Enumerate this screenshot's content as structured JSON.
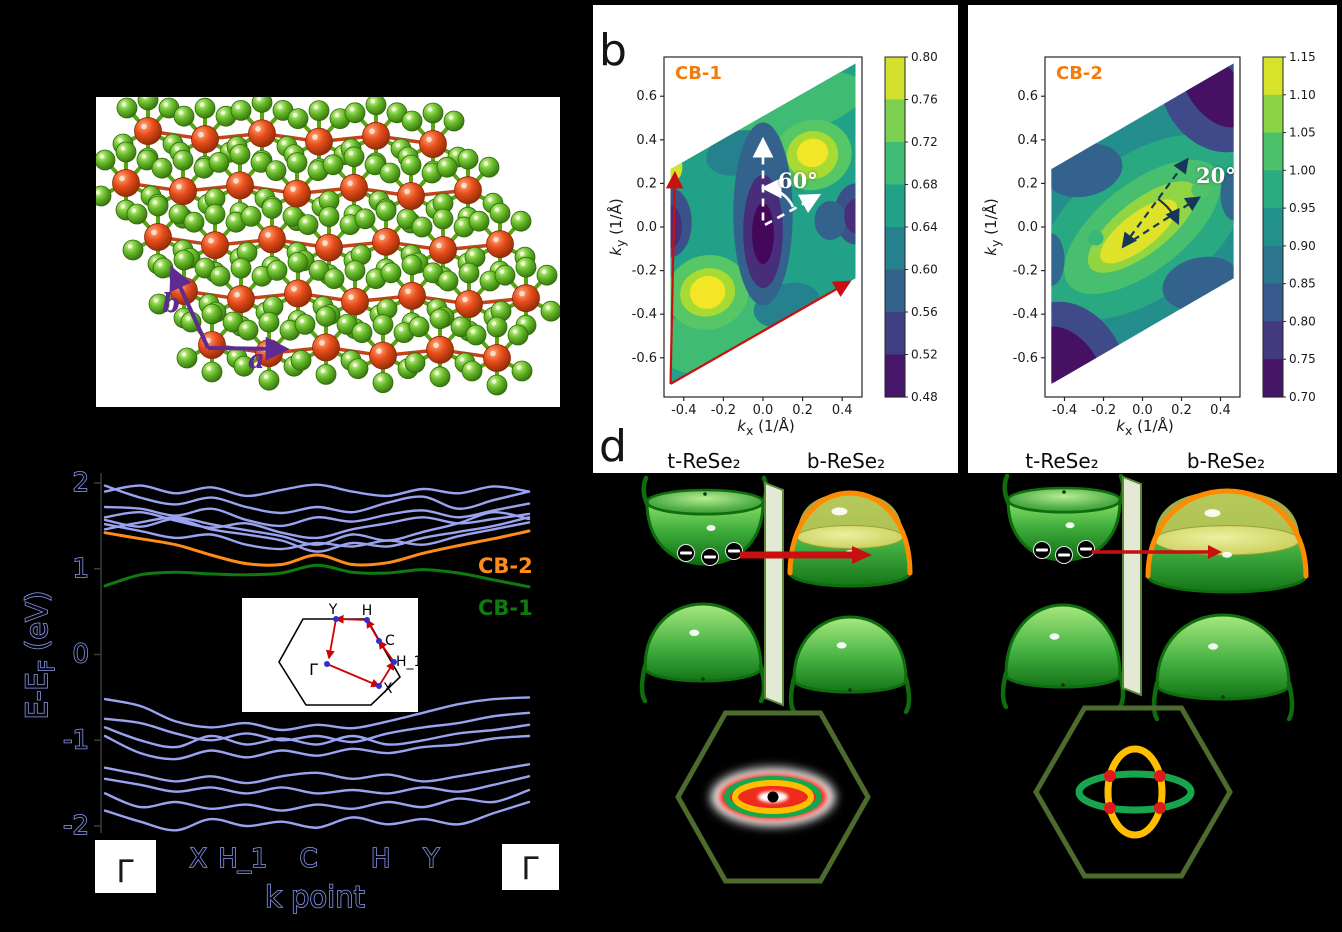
{
  "panels": {
    "a": {
      "vector_a_label": "a",
      "vector_b_label": "b"
    },
    "b": {
      "letter": "b"
    },
    "d": {
      "letter": "d",
      "diagram_1": {
        "label_left": "t-ReSe₂",
        "label_right": "b-ReSe₂"
      },
      "diagram_2": {
        "label_left": "t-ReSe₂",
        "label_right": "b-ReSe₂"
      }
    }
  },
  "colors": {
    "band_blue": "#9aa3f0",
    "cb1_green": "#0f7a0f",
    "cb2_orange": "#ff8c1a",
    "arrow_red": "#c81010",
    "lattice_purple": "#5f2b93",
    "annotation_navy": "#16365c",
    "hexagon_olive": "#4e6b2e",
    "ring_green": "#17a64e",
    "ring_yellow": "#ffbf00",
    "dot_red": "#e01a1a",
    "atom_re": "#e84e1b",
    "atom_se": "#6abf2e"
  },
  "chart_data": [
    {
      "type": "heatmap",
      "name": "effective-mass-map-cb1",
      "title": "CB-1",
      "xlabel": "k_x (1/Å)",
      "ylabel": "k_y (1/Å)",
      "xlim": [
        -0.5,
        0.5
      ],
      "ylim": [
        -0.78,
        0.78
      ],
      "xticks": [
        -0.4,
        -0.2,
        0.0,
        0.2,
        0.4
      ],
      "yticks": [
        0.6,
        0.4,
        0.2,
        0.0,
        -0.2,
        -0.4,
        -0.6
      ],
      "vmin": 0.48,
      "vmax": 0.8,
      "colorbar_ticks": [
        0.8,
        0.76,
        0.72,
        0.68,
        0.64,
        0.6,
        0.56,
        0.52,
        0.48
      ],
      "base_value": 0.66,
      "annotation": "60°",
      "region_polygon": [
        [
          -0.467,
          -0.72
        ],
        [
          0.467,
          -0.2355
        ],
        [
          0.467,
          0.75
        ],
        [
          -0.467,
          0.2655
        ]
      ],
      "maxima": [
        [
          0.25,
          0.33
        ],
        [
          -0.28,
          -0.3
        ]
      ],
      "minima": [
        [
          0.0,
          -0.02
        ]
      ],
      "features": [
        [
          0.03,
          0.54,
          0.5,
          0.15,
          -13,
          0.7
        ],
        [
          -0.2,
          -0.5,
          0.34,
          0.17,
          -13,
          0.7
        ],
        [
          0.25,
          0.33,
          0.2,
          0.16,
          -15,
          0.72
        ],
        [
          -0.28,
          -0.3,
          0.21,
          0.17,
          -15,
          0.72
        ],
        [
          0.25,
          0.33,
          0.13,
          0.11,
          -15,
          0.76
        ],
        [
          -0.28,
          -0.3,
          0.14,
          0.11,
          -15,
          0.76
        ],
        [
          0.25,
          0.34,
          0.08,
          0.065,
          -15,
          0.795
        ],
        [
          -0.28,
          -0.3,
          0.09,
          0.075,
          -15,
          0.795
        ],
        [
          -0.462,
          0.275,
          0.055,
          0.07,
          0,
          0.78
        ],
        [
          -0.12,
          0.34,
          0.17,
          0.1,
          -15,
          0.62
        ],
        [
          0.12,
          -0.36,
          0.17,
          0.1,
          -15,
          0.62
        ],
        [
          0,
          0.06,
          0.15,
          0.42,
          0,
          0.58
        ],
        [
          -0.47,
          0.02,
          0.11,
          0.16,
          0,
          0.56
        ],
        [
          0.47,
          0.06,
          0.11,
          0.14,
          0,
          0.56
        ],
        [
          0.34,
          0.03,
          0.08,
          0.09,
          0,
          0.58
        ],
        [
          0,
          -0.02,
          0.1,
          0.26,
          0,
          0.52
        ],
        [
          0,
          -0.03,
          0.055,
          0.14,
          0,
          0.485
        ],
        [
          0.47,
          0.05,
          0.06,
          0.08,
          0,
          0.52
        ],
        [
          -0.47,
          0,
          0.06,
          0.1,
          0,
          0.52
        ]
      ]
    },
    {
      "type": "heatmap",
      "name": "effective-mass-map-cb2",
      "title": "CB-2",
      "xlabel": "k_x (1/Å)",
      "ylabel": "k_y (1/Å)",
      "xlim": [
        -0.5,
        0.5
      ],
      "ylim": [
        -0.78,
        0.78
      ],
      "xticks": [
        -0.4,
        -0.2,
        0.0,
        0.2,
        0.4
      ],
      "yticks": [
        0.6,
        0.4,
        0.2,
        0.0,
        -0.2,
        -0.4,
        -0.6
      ],
      "vmin": 0.7,
      "vmax": 1.15,
      "colorbar_ticks": [
        1.15,
        1.1,
        1.05,
        1.0,
        0.95,
        0.9,
        0.85,
        0.8,
        0.75,
        0.7
      ],
      "base_value": 0.92,
      "annotation": "20°",
      "region_polygon": [
        [
          -0.467,
          -0.72
        ],
        [
          0.467,
          -0.2355
        ],
        [
          0.467,
          0.75
        ],
        [
          -0.467,
          0.2655
        ]
      ],
      "maxima": [
        [
          0.0,
          0.0
        ]
      ],
      "minima": [
        [
          0.36,
          0.62
        ],
        [
          -0.36,
          -0.62
        ]
      ],
      "features": [
        [
          0,
          0,
          0.62,
          0.32,
          -38,
          0.97
        ],
        [
          0,
          0,
          0.48,
          0.2,
          -38,
          1.02
        ],
        [
          0,
          0,
          0.34,
          0.12,
          -38,
          1.08
        ],
        [
          -0.02,
          -0.02,
          0.24,
          0.08,
          -38,
          1.13
        ],
        [
          0.3,
          0.17,
          0.05,
          0.04,
          0,
          1.03
        ],
        [
          -0.24,
          -0.05,
          0.04,
          0.035,
          0,
          1.0
        ],
        [
          -0.3,
          0.26,
          0.2,
          0.12,
          -13,
          0.84
        ],
        [
          0.3,
          -0.26,
          0.2,
          0.12,
          -13,
          0.84
        ],
        [
          0.47,
          0.15,
          0.07,
          0.12,
          0,
          0.85
        ],
        [
          -0.47,
          -0.15,
          0.07,
          0.12,
          0,
          0.85
        ],
        [
          0.36,
          0.6,
          0.24,
          0.28,
          -38,
          0.8
        ],
        [
          -0.36,
          -0.6,
          0.24,
          0.28,
          -38,
          0.8
        ],
        [
          0.37,
          0.63,
          0.13,
          0.2,
          -38,
          0.72
        ],
        [
          -0.37,
          -0.63,
          0.13,
          0.2,
          -38,
          0.72
        ]
      ]
    },
    {
      "type": "line",
      "name": "band-structure",
      "ylabel": "E-E_F (eV)",
      "xlabel": "k point",
      "ylim": [
        -2,
        2
      ],
      "yticks": [
        2,
        1,
        0,
        -1,
        -2
      ],
      "kpoint_labels": [
        "Γ",
        "X",
        "H_1",
        "C",
        "H",
        "Y",
        "Γ"
      ],
      "kpoint_frac": [
        0,
        0.22,
        0.325,
        0.48,
        0.65,
        0.77,
        1
      ],
      "cb1_label": "CB-1",
      "cb2_label": "CB-2",
      "cb2": [
        1.42,
        1.35,
        1.28,
        1.16,
        1.06,
        1.05,
        1.16,
        1.05,
        1.07,
        1.18,
        1.27,
        1.35,
        1.44
      ],
      "cb1": [
        0.8,
        0.93,
        0.96,
        0.94,
        0.93,
        0.95,
        1.04,
        0.96,
        0.95,
        0.99,
        0.95,
        0.87,
        0.79
      ],
      "conduction_bands": [
        [
          1.9,
          1.97,
          1.88,
          1.95,
          1.85,
          1.92,
          1.98,
          1.9,
          1.85,
          1.93,
          1.88,
          1.96,
          1.9
        ],
        [
          1.97,
          1.83,
          1.75,
          1.83,
          1.72,
          1.65,
          1.72,
          1.66,
          1.77,
          1.84,
          1.7,
          1.8,
          1.9
        ],
        [
          1.72,
          1.7,
          1.62,
          1.7,
          1.57,
          1.5,
          1.6,
          1.55,
          1.63,
          1.68,
          1.6,
          1.68,
          1.76
        ],
        [
          1.6,
          1.66,
          1.56,
          1.48,
          1.53,
          1.42,
          1.36,
          1.46,
          1.53,
          1.6,
          1.53,
          1.58,
          1.64
        ],
        [
          1.46,
          1.54,
          1.6,
          1.52,
          1.45,
          1.38,
          1.28,
          1.4,
          1.33,
          1.43,
          1.53,
          1.66,
          1.58
        ],
        [
          1.52,
          1.44,
          1.36,
          1.4,
          1.28,
          1.23,
          1.3,
          1.26,
          1.33,
          1.28,
          1.38,
          1.46,
          1.54
        ],
        [
          1.57,
          1.49,
          1.58,
          1.46,
          1.4,
          1.33,
          1.2,
          1.3,
          1.26,
          1.36,
          1.43,
          1.5,
          1.6
        ]
      ],
      "valence_bands": [
        [
          -0.52,
          -0.6,
          -0.78,
          -0.85,
          -0.8,
          -0.88,
          -0.82,
          -0.86,
          -0.78,
          -0.68,
          -0.58,
          -0.52,
          -0.5
        ],
        [
          -0.75,
          -0.8,
          -0.92,
          -1.0,
          -0.92,
          -1.0,
          -0.95,
          -1.02,
          -0.92,
          -0.85,
          -0.8,
          -0.72,
          -0.68
        ],
        [
          -0.85,
          -1.0,
          -1.08,
          -0.95,
          -1.05,
          -0.98,
          -1.05,
          -0.95,
          -1.05,
          -1.0,
          -0.92,
          -0.88,
          -0.82
        ],
        [
          -0.95,
          -1.15,
          -1.22,
          -1.12,
          -1.2,
          -1.12,
          -1.18,
          -1.1,
          -1.15,
          -1.08,
          -1.05,
          -0.98,
          -0.95
        ],
        [
          -1.32,
          -1.4,
          -1.48,
          -1.42,
          -1.5,
          -1.42,
          -1.38,
          -1.45,
          -1.4,
          -1.48,
          -1.42,
          -1.35,
          -1.28
        ],
        [
          -1.45,
          -1.52,
          -1.6,
          -1.55,
          -1.62,
          -1.55,
          -1.62,
          -1.58,
          -1.62,
          -1.55,
          -1.6,
          -1.52,
          -1.42
        ],
        [
          -1.62,
          -1.78,
          -1.72,
          -1.8,
          -1.75,
          -1.82,
          -1.75,
          -1.8,
          -1.72,
          -1.78,
          -1.68,
          -1.72,
          -1.58
        ],
        [
          -1.82,
          -1.95,
          -2.05,
          -1.92,
          -2.0,
          -1.95,
          -2.02,
          -1.9,
          -1.98,
          -1.92,
          -1.98,
          -1.85,
          -1.72
        ]
      ],
      "inset_labels": [
        "Y",
        "H",
        "C",
        "H_1",
        "Γ",
        "X"
      ]
    }
  ]
}
